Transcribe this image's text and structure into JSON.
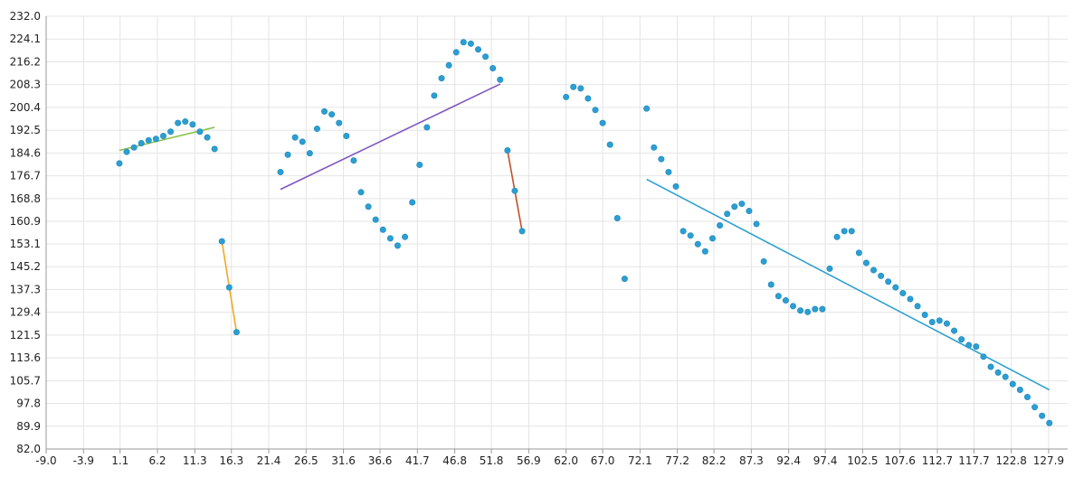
{
  "chart_data": {
    "type": "scatter",
    "grid": true,
    "xlim": [
      -9.0,
      130.5
    ],
    "ylim": [
      82.0,
      232.0
    ],
    "x_ticks": [
      "-9.0",
      "-3.9",
      "1.1",
      "6.2",
      "11.3",
      "16.3",
      "21.4",
      "26.5",
      "31.6",
      "36.6",
      "41.7",
      "46.8",
      "51.8",
      "56.9",
      "62.0",
      "67.0",
      "72.1",
      "77.2",
      "82.2",
      "87.3",
      "92.4",
      "97.4",
      "102.5",
      "107.6",
      "112.7",
      "117.7",
      "122.8",
      "127.9"
    ],
    "y_ticks": [
      "82.0",
      "89.9",
      "97.8",
      "105.7",
      "113.6",
      "121.5",
      "129.4",
      "137.3",
      "145.2",
      "153.1",
      "160.9",
      "168.8",
      "176.7",
      "184.6",
      "192.5",
      "200.4",
      "208.3",
      "216.2",
      "224.1",
      "232.0"
    ],
    "point_color": "#2b9fd3",
    "points": [
      [
        1.0,
        181.0
      ],
      [
        2.0,
        185.0
      ],
      [
        3.0,
        186.5
      ],
      [
        4.0,
        188.0
      ],
      [
        5.0,
        189.0
      ],
      [
        6.0,
        189.5
      ],
      [
        7.0,
        190.5
      ],
      [
        8.0,
        192.0
      ],
      [
        9.0,
        195.0
      ],
      [
        10.0,
        195.5
      ],
      [
        11.0,
        194.5
      ],
      [
        12.0,
        192.0
      ],
      [
        13.0,
        190.0
      ],
      [
        14.0,
        186.0
      ],
      [
        15.0,
        154.0
      ],
      [
        16.0,
        138.0
      ],
      [
        17.0,
        122.5
      ],
      [
        23.0,
        178.0
      ],
      [
        24.0,
        184.0
      ],
      [
        25.0,
        190.0
      ],
      [
        26.0,
        188.5
      ],
      [
        27.0,
        184.5
      ],
      [
        28.0,
        193.0
      ],
      [
        29.0,
        199.0
      ],
      [
        30.0,
        198.0
      ],
      [
        31.0,
        195.0
      ],
      [
        32.0,
        190.5
      ],
      [
        33.0,
        182.0
      ],
      [
        34.0,
        171.0
      ],
      [
        35.0,
        166.0
      ],
      [
        36.0,
        161.5
      ],
      [
        37.0,
        158.0
      ],
      [
        38.0,
        155.0
      ],
      [
        39.0,
        152.5
      ],
      [
        40.0,
        155.5
      ],
      [
        41.0,
        167.5
      ],
      [
        42.0,
        180.5
      ],
      [
        43.0,
        193.5
      ],
      [
        44.0,
        204.5
      ],
      [
        45.0,
        210.5
      ],
      [
        46.0,
        215.0
      ],
      [
        47.0,
        219.5
      ],
      [
        48.0,
        223.0
      ],
      [
        49.0,
        222.5
      ],
      [
        50.0,
        220.5
      ],
      [
        51.0,
        218.0
      ],
      [
        52.0,
        214.0
      ],
      [
        53.0,
        210.0
      ],
      [
        54.0,
        185.5
      ],
      [
        55.0,
        171.5
      ],
      [
        56.0,
        157.5
      ],
      [
        62.0,
        204.0
      ],
      [
        63.0,
        207.5
      ],
      [
        64.0,
        207.0
      ],
      [
        65.0,
        203.5
      ],
      [
        66.0,
        199.5
      ],
      [
        67.0,
        195.0
      ],
      [
        68.0,
        187.5
      ],
      [
        69.0,
        162.0
      ],
      [
        70.0,
        141.0
      ],
      [
        73.0,
        200.0
      ],
      [
        74.0,
        186.5
      ],
      [
        75.0,
        182.5
      ],
      [
        76.0,
        178.0
      ],
      [
        77.0,
        173.0
      ],
      [
        78.0,
        157.5
      ],
      [
        79.0,
        156.0
      ],
      [
        80.0,
        153.0
      ],
      [
        81.0,
        150.5
      ],
      [
        82.0,
        155.0
      ],
      [
        83.0,
        159.5
      ],
      [
        84.0,
        163.5
      ],
      [
        85.0,
        166.0
      ],
      [
        86.0,
        167.0
      ],
      [
        87.0,
        164.5
      ],
      [
        88.0,
        160.0
      ],
      [
        89.0,
        147.0
      ],
      [
        90.0,
        139.0
      ],
      [
        91.0,
        135.0
      ],
      [
        92.0,
        133.5
      ],
      [
        93.0,
        131.5
      ],
      [
        94.0,
        130.0
      ],
      [
        95.0,
        129.5
      ],
      [
        96.0,
        130.5
      ],
      [
        97.0,
        130.5
      ],
      [
        98.0,
        144.5
      ],
      [
        99.0,
        155.5
      ],
      [
        100.0,
        157.5
      ],
      [
        101.0,
        157.5
      ],
      [
        102.0,
        150.0
      ],
      [
        103.0,
        146.5
      ],
      [
        104.0,
        144.0
      ],
      [
        105.0,
        142.0
      ],
      [
        106.0,
        140.0
      ],
      [
        107.0,
        138.0
      ],
      [
        108.0,
        136.0
      ],
      [
        109.0,
        134.0
      ],
      [
        110.0,
        131.5
      ],
      [
        111.0,
        128.5
      ],
      [
        112.0,
        126.0
      ],
      [
        113.0,
        126.5
      ],
      [
        114.0,
        125.5
      ],
      [
        115.0,
        123.0
      ],
      [
        116.0,
        120.0
      ],
      [
        117.0,
        118.0
      ],
      [
        118.0,
        117.5
      ],
      [
        119.0,
        114.0
      ],
      [
        120.0,
        110.5
      ],
      [
        121.0,
        108.5
      ],
      [
        122.0,
        107.0
      ],
      [
        123.0,
        104.5
      ],
      [
        124.0,
        102.5
      ],
      [
        125.0,
        100.0
      ],
      [
        126.0,
        96.5
      ],
      [
        127.0,
        93.5
      ],
      [
        128.0,
        91.0
      ]
    ],
    "trend_lines": [
      {
        "color": "#8bc34a",
        "x": [
          1.0,
          14.0
        ],
        "y": [
          185.5,
          193.5
        ]
      },
      {
        "color": "#f5a623",
        "x": [
          15.0,
          17.0
        ],
        "y": [
          154.0,
          122.5
        ]
      },
      {
        "color": "#7e57c2",
        "x": [
          23.0,
          53.0
        ],
        "y": [
          172.0,
          208.5
        ]
      },
      {
        "color": "#c0502a",
        "x": [
          54.0,
          56.0
        ],
        "y": [
          185.5,
          157.5
        ]
      },
      {
        "color": "#2b9fd3",
        "x": [
          73.0,
          128.0
        ],
        "y": [
          175.5,
          102.5
        ]
      }
    ]
  }
}
